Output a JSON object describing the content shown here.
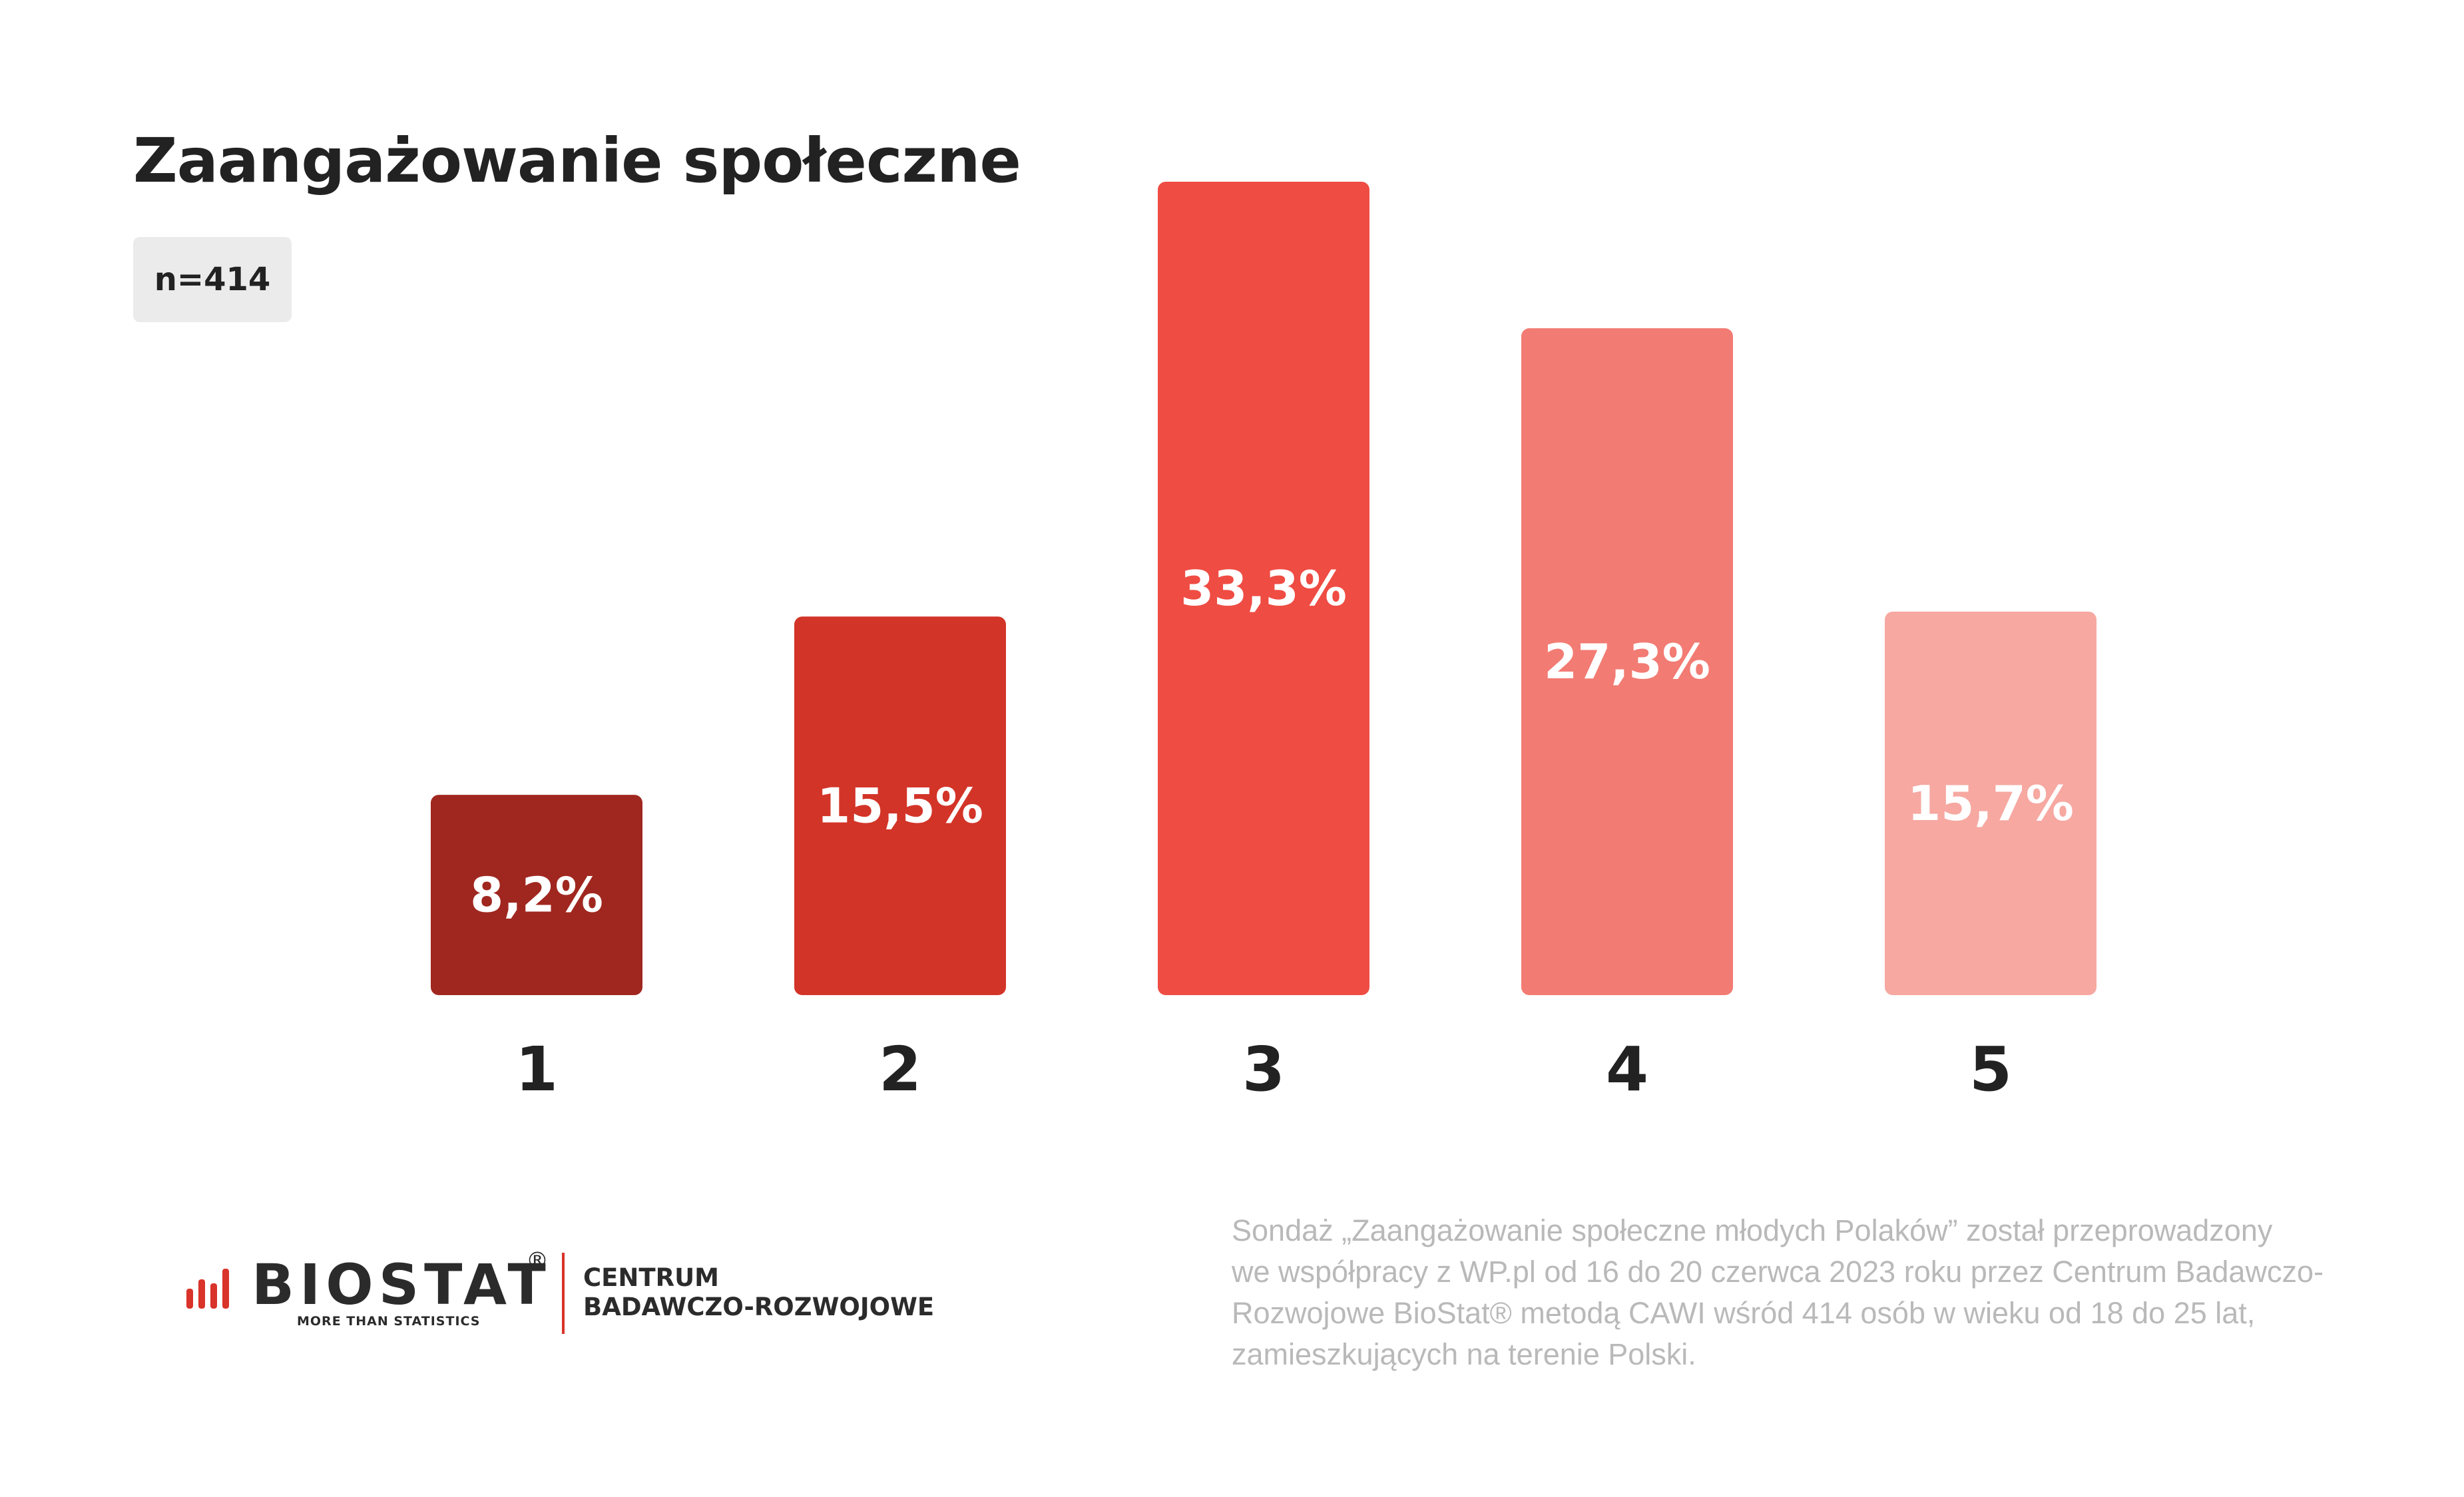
{
  "title": "Zaangażowanie społeczne",
  "sample_badge": "n=414",
  "chart_data": {
    "type": "bar",
    "title": "Zaangażowanie społeczne",
    "categories": [
      "1",
      "2",
      "3",
      "4",
      "5"
    ],
    "values": [
      8.2,
      15.5,
      33.3,
      27.3,
      15.7
    ],
    "value_labels": [
      "8,2%",
      "15,5%",
      "33,3%",
      "27,3%",
      "15,7%"
    ],
    "colors": [
      "#a0271f",
      "#d33428",
      "#ef4c43",
      "#f27b73",
      "#f6a8a1"
    ],
    "xlabel": "",
    "ylabel": "",
    "ylim": [
      0,
      33.3
    ],
    "grid": false,
    "legend": "none"
  },
  "logo": {
    "wordmark": "BIOSTAT",
    "registered": "®",
    "tagline": "MORE THAN STATISTICS",
    "unit_line1": "CENTRUM",
    "unit_line2": "BADAWCZO-ROZWOJOWE",
    "accent_color": "#d9332a"
  },
  "footnote": {
    "line1": "Sondaż  „Zaangażowanie społeczne młodych Polaków” został przeprowadzony",
    "line2": "we współpracy z WP.pl od 16 do 20 czerwca 2023 roku przez Centrum Badawczo-",
    "line3": "Rozwojowe BioStat® metodą CAWI wśród 414 osób w wieku od 18 do 25 lat,",
    "line4": "zamieszkujących na terenie Polski."
  }
}
